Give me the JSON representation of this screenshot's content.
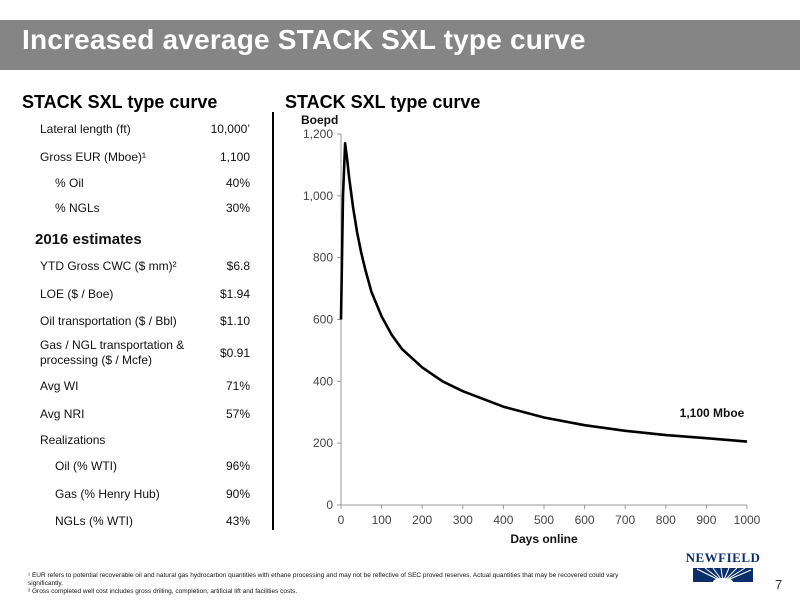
{
  "header": {
    "title": "Increased average STACK SXL type curve"
  },
  "left": {
    "title": "STACK SXL type curve",
    "rows": [
      {
        "label": "Lateral length (ft)",
        "value": "10,000’"
      },
      {
        "label": "Gross EUR (Mboe)¹",
        "value": "1,100"
      },
      {
        "label": "% Oil",
        "value": "40%"
      },
      {
        "label": "% NGLs",
        "value": "30%"
      }
    ],
    "estimates_title": "2016 estimates",
    "estimates": [
      {
        "label": "YTD Gross CWC ($ mm)²",
        "value": "$6.8"
      },
      {
        "label": "LOE ($ / Boe)",
        "value": "$1.94"
      },
      {
        "label": "Oil transportation ($ / Bbl)",
        "value": "$1.10"
      },
      {
        "label": "Gas / NGL transportation & processing ($ / Mcfe)",
        "value": "$0.91"
      },
      {
        "label": "Avg WI",
        "value": "71%"
      },
      {
        "label": "Avg NRI",
        "value": "57%"
      },
      {
        "label": "Realizations",
        "value": ""
      },
      {
        "label": "Oil (% WTI)",
        "value": "96%"
      },
      {
        "label": "Gas (% Henry Hub)",
        "value": "90%"
      },
      {
        "label": "NGLs (% WTI)",
        "value": "43%"
      }
    ]
  },
  "right": {
    "title": "STACK SXL type curve"
  },
  "chart_data": {
    "type": "line",
    "title": "",
    "xlabel": "Days online",
    "ylabel": "Boepd",
    "xlim": [
      0,
      1000
    ],
    "ylim": [
      0,
      1200
    ],
    "xticks": [
      0,
      100,
      200,
      300,
      400,
      500,
      600,
      700,
      800,
      900,
      1000
    ],
    "yticks": [
      0,
      200,
      400,
      600,
      800,
      1000,
      1200
    ],
    "ytick_labels": [
      "0",
      "200",
      "400",
      "600",
      "800",
      "1,000",
      "1,200"
    ],
    "grid": false,
    "annotation": "1,100 Mboe",
    "series": [
      {
        "x": [
          0,
          5,
          10,
          15,
          20,
          30,
          40,
          50,
          60,
          75,
          100,
          125,
          150,
          200,
          250,
          300,
          400,
          500,
          600,
          700,
          800,
          900,
          1000
        ],
        "y": [
          600,
          1000,
          1170,
          1120,
          1060,
          960,
          880,
          815,
          760,
          690,
          610,
          550,
          505,
          445,
          400,
          368,
          318,
          283,
          258,
          240,
          226,
          216,
          205
        ]
      }
    ]
  },
  "footnotes": [
    "¹ EUR refers to potential recoverable oil and natural gas hydrocarbon quantities with ethane processing and may not be reflective of SEC proved reserves. Actual quantities that may be recovered could vary significantly.",
    "² Gross completed well cost includes gross drilling, completion, artificial lift and facilities costs."
  ],
  "brand": {
    "logo_text": "NEWFIELD",
    "color": "#0b2f6b"
  },
  "page_number": "7"
}
